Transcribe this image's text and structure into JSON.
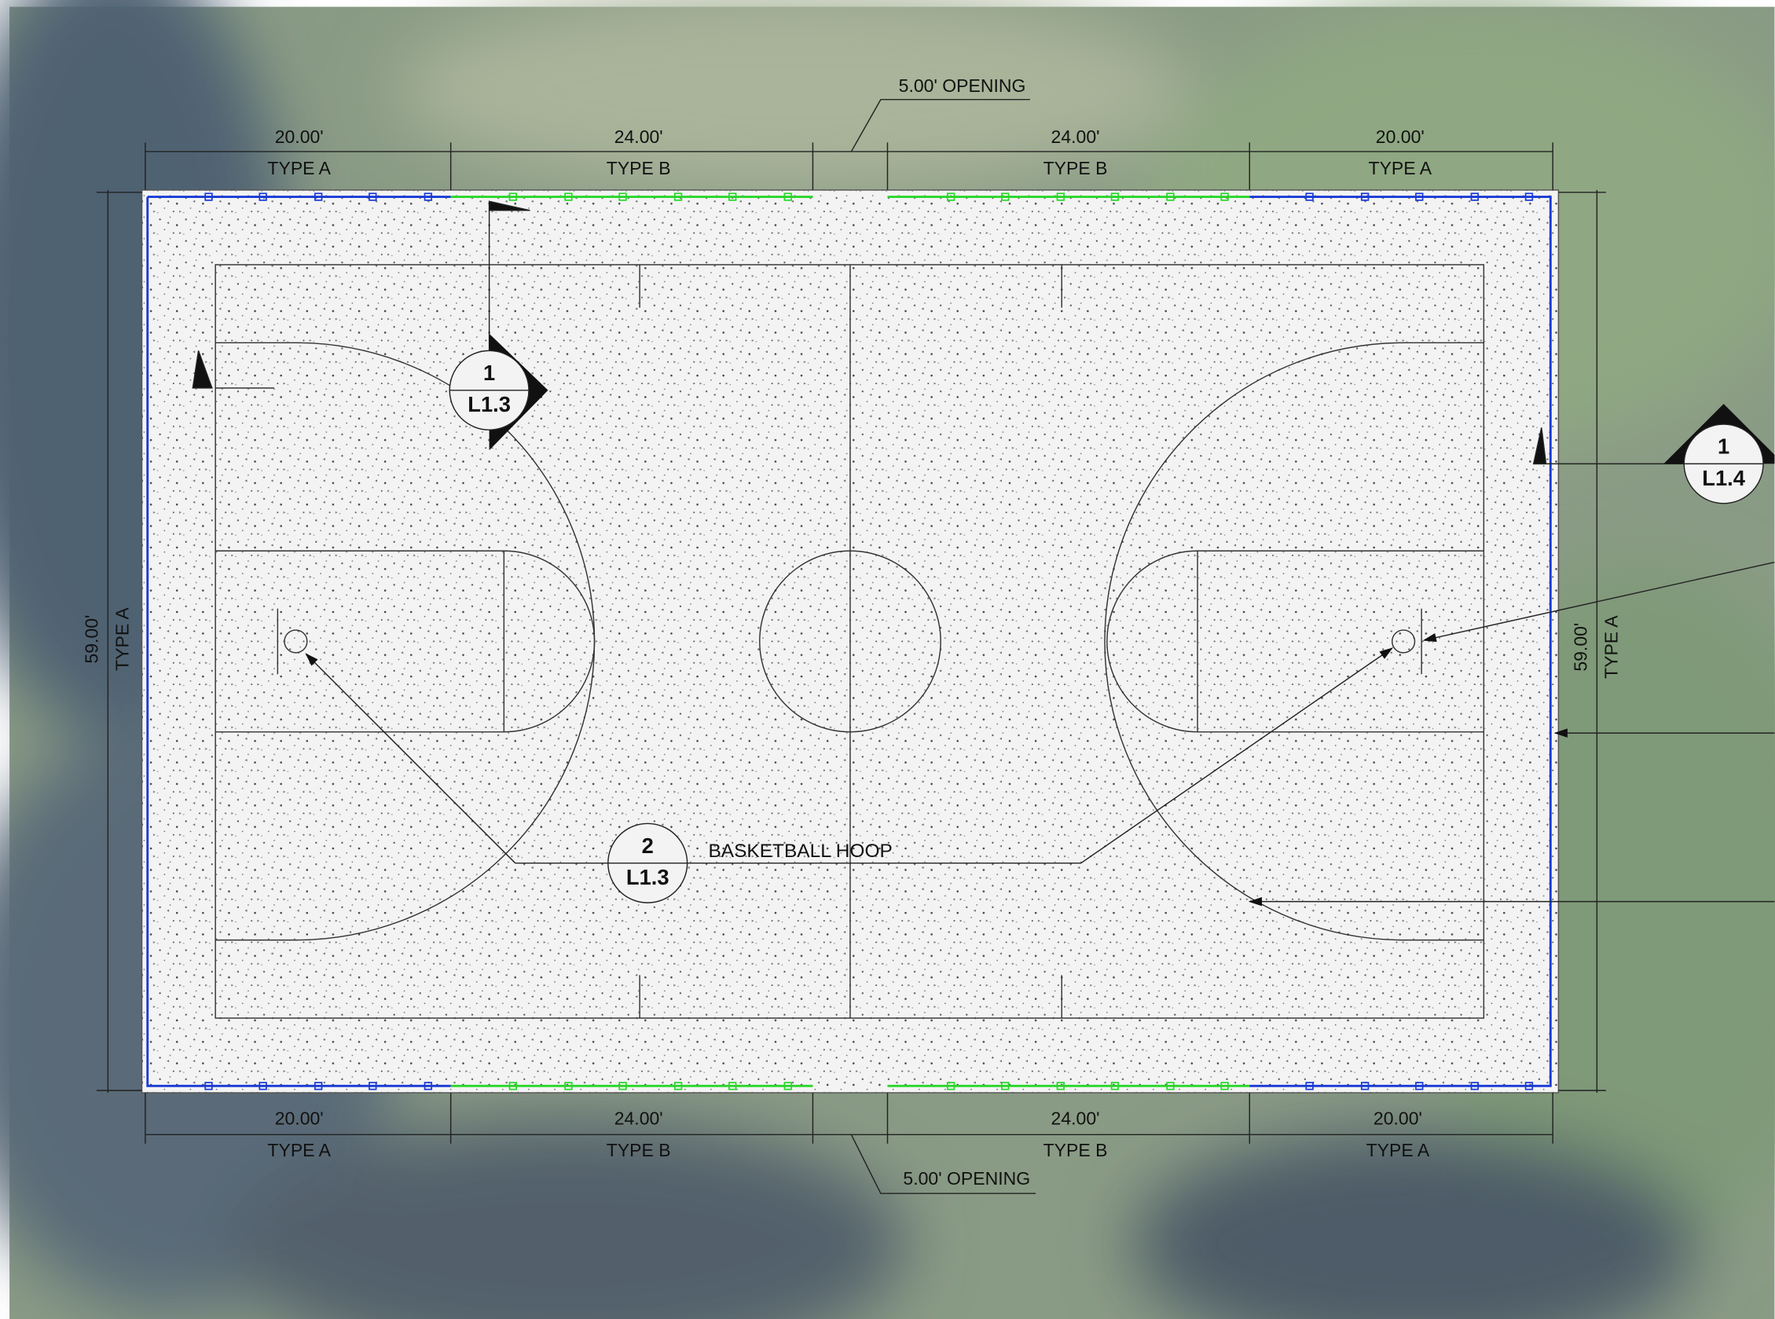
{
  "top_dimensions": [
    {
      "length": "20.00'",
      "type": "TYPE A"
    },
    {
      "length": "24.00'",
      "type": "TYPE B"
    },
    {
      "length": "24.00'",
      "type": "TYPE B"
    },
    {
      "length": "20.00'",
      "type": "TYPE A"
    }
  ],
  "bottom_dimensions": [
    {
      "length": "20.00'",
      "type": "TYPE A"
    },
    {
      "length": "24.00'",
      "type": "TYPE B"
    },
    {
      "length": "24.00'",
      "type": "TYPE B"
    },
    {
      "length": "20.00'",
      "type": "TYPE A"
    }
  ],
  "left_dimension": {
    "length": "59.00'",
    "type": "TYPE A"
  },
  "right_dimension": {
    "length": "59.00'",
    "type": "TYPE A"
  },
  "openings": [
    "5.00' OPENING",
    "5.00' OPENING"
  ],
  "callouts": [
    {
      "number": "1",
      "sheet": "L1.3"
    },
    {
      "number": "1",
      "sheet": "L1.4"
    },
    {
      "number": "2",
      "sheet": "L1.3"
    }
  ],
  "hoop_label": "BASKETBALL HOOP"
}
